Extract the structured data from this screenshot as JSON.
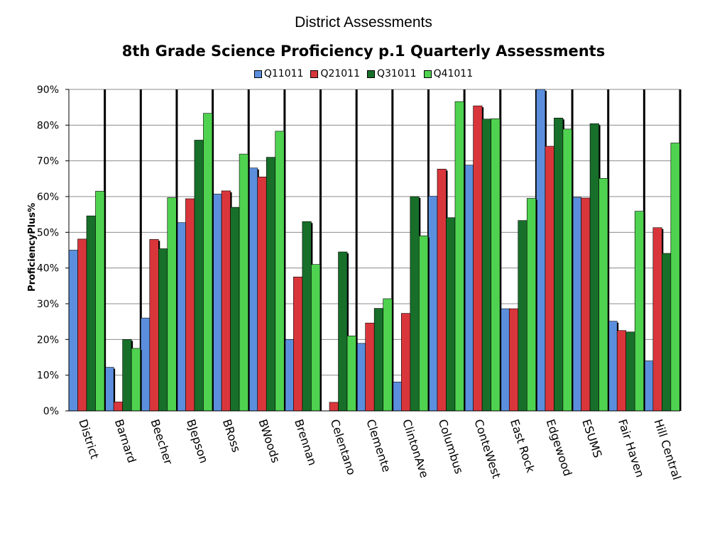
{
  "suptitle": "District Assessments",
  "chart_data": {
    "type": "bar",
    "title": "8th Grade Science Proficiency p.1 Quarterly Assessments",
    "xlabel": "",
    "ylabel": "ProficiencyPlus%",
    "ylim": [
      0,
      90
    ],
    "ytick_step": 10,
    "ytick_suffix": "%",
    "grid": true,
    "legend_position": "top",
    "categories": [
      "District",
      "Barnard",
      "Beecher",
      "BJepson",
      "BRoss",
      "BWoods",
      "Brennan",
      "Celentano",
      "Clemente",
      "ClintonAve",
      "Columbus",
      "ConteWest",
      "East Rock",
      "Edgewood",
      "ESUMS",
      "Fair Haven",
      "Hill Central"
    ],
    "series": [
      {
        "name": "Q11011",
        "color": "#5b8fdd",
        "values": [
          45,
          12.2,
          26,
          52.7,
          60.7,
          68,
          20,
          0,
          18.9,
          8.1,
          60.1,
          68.8,
          28.6,
          90,
          59.8,
          25.1,
          14
        ]
      },
      {
        "name": "Q21011",
        "color": "#d9363b",
        "values": [
          48.1,
          2.5,
          48,
          59.4,
          61.6,
          65.5,
          37.5,
          2.4,
          24.6,
          27.3,
          67.7,
          85.4,
          28.6,
          74.1,
          59.6,
          22.5,
          51.3
        ]
      },
      {
        "name": "Q31011",
        "color": "#176f29",
        "values": [
          54.6,
          20,
          45.4,
          75.8,
          57,
          71,
          53,
          44.5,
          28.7,
          60,
          54.1,
          81.7,
          53.3,
          82,
          80.4,
          22.1,
          44.1
        ]
      },
      {
        "name": "Q41011",
        "color": "#4fd24f",
        "values": [
          61.5,
          17.5,
          59.7,
          83.3,
          71.9,
          78.3,
          41,
          21,
          31.4,
          49,
          86.6,
          81.8,
          59.5,
          78.9,
          65.1,
          55.9,
          75
        ]
      }
    ]
  }
}
